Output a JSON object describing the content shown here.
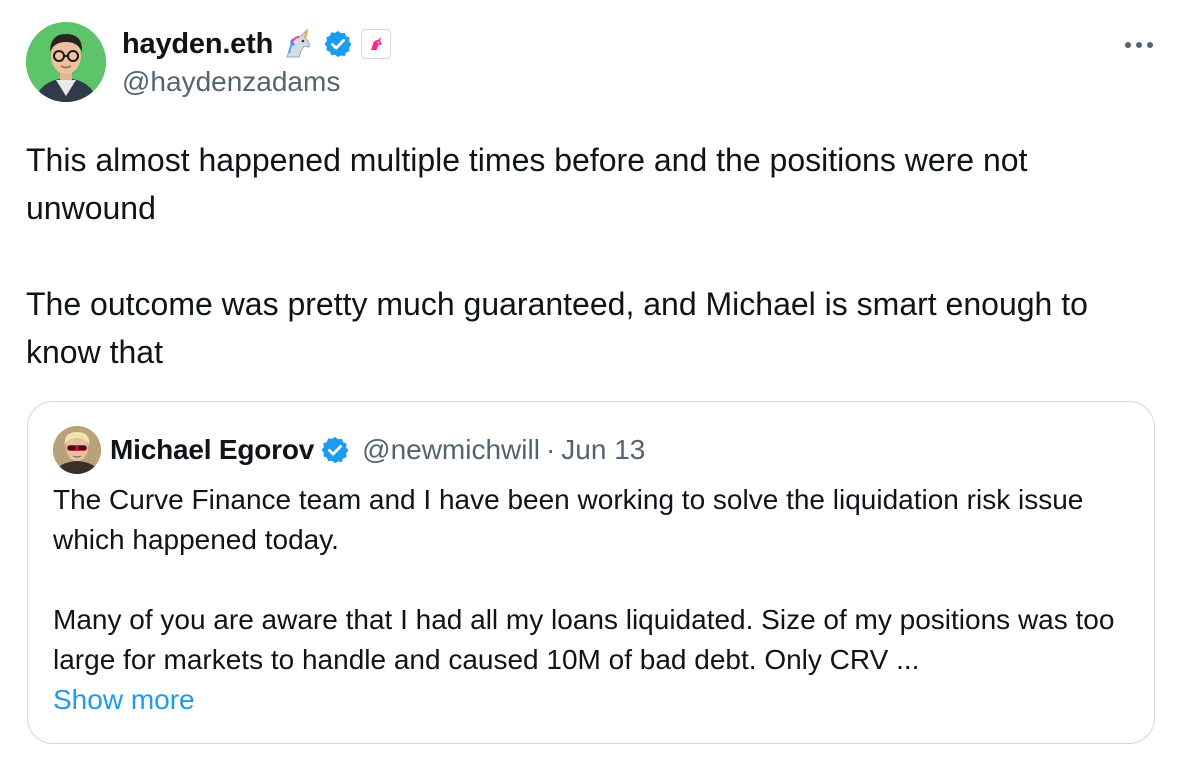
{
  "author": {
    "display_name": "hayden.eth",
    "handle": "@haydenzadams",
    "name_emoji": "unicorn-emoji",
    "verified_color": "#1d9bf0",
    "avatar_bg": "#5ec46a"
  },
  "tweet": {
    "paragraphs": [
      "This almost happened multiple times before and the positions were not unwound",
      "The outcome was pretty much guaranteed, and Michael is smart enough to know that"
    ]
  },
  "quoted": {
    "display_name": "Michael Egorov",
    "handle": "@newmichwill",
    "separator": "·",
    "date": "Jun 13",
    "paragraphs": [
      "The Curve Finance team and I have been working to solve the liquidation risk issue which happened today.",
      "Many of you are aware that I had all my loans liquidated. Size of my positions was too large for markets to handle and caused 10M of bad debt. Only CRV ..."
    ],
    "show_more_label": "Show more",
    "link_color": "#1d9bf0"
  },
  "icons": {
    "more": "more-horizontal-icon",
    "verified": "verified-badge-icon",
    "affiliate": "affiliate-badge-icon"
  }
}
